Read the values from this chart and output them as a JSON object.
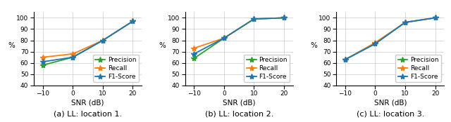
{
  "snr": [
    -10,
    0,
    10,
    20
  ],
  "loc1": {
    "precision": [
      58,
      65,
      80,
      97
    ],
    "recall": [
      65,
      68,
      80,
      97
    ],
    "f1": [
      61,
      65,
      80,
      97
    ]
  },
  "loc2": {
    "precision": [
      64,
      82,
      99,
      100
    ],
    "recall": [
      73,
      82,
      99,
      100
    ],
    "f1": [
      68,
      82,
      99,
      100
    ]
  },
  "loc3": {
    "precision": [
      63,
      77,
      96,
      100
    ],
    "recall": [
      63,
      78,
      96,
      100
    ],
    "f1": [
      63,
      77,
      96,
      100
    ]
  },
  "color_precision": "#2ca02c",
  "color_recall": "#ff7f0e",
  "color_f1": "#1f77b4",
  "xlabel": "SNR (dB)",
  "ylabel": "%",
  "ylim": [
    40,
    105
  ],
  "yticks": [
    40,
    50,
    60,
    70,
    80,
    90,
    100
  ],
  "xticks": [
    -10,
    0,
    10,
    20
  ],
  "subtitles": [
    "(a) LL: location 1.",
    "(b) LL: location 2.",
    "(c) LL: location 3."
  ],
  "legend_labels": [
    "Precision",
    "Recall",
    "F1-Score"
  ],
  "marker": "*",
  "markersize": 6,
  "linewidth": 1.3,
  "grid_color": "#cccccc",
  "subtitle_fontsize": 8,
  "tick_fontsize": 6.5,
  "label_fontsize": 7.5,
  "legend_fontsize": 6.5
}
